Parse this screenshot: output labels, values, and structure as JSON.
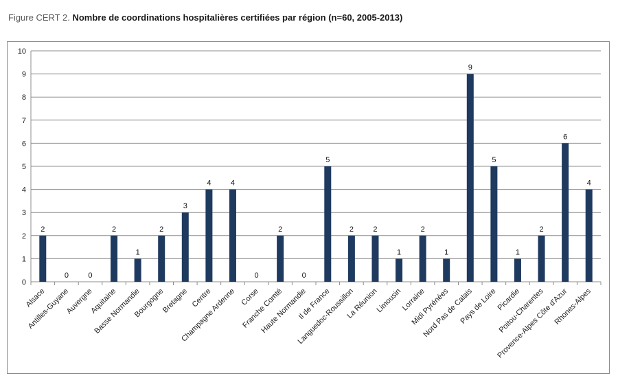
{
  "figure": {
    "label": "Figure CERT 2.",
    "title": "Nombre de coordinations hospitalières certifiées par région (n=60, 2005-2013)"
  },
  "chart_data": {
    "type": "bar",
    "categories": [
      "Alsace",
      "Antilles-Guyane",
      "Auvergne",
      "Aquitaine",
      "Basse Normandie",
      "Bourgogne",
      "Bretagne",
      "Centre",
      "Champagne Ardenne",
      "Corse",
      "Franche Comté",
      "Haute Normandie",
      "Il de France",
      "Languedoc-Roussillon",
      "La Réunion",
      "Limousin",
      "Lorraine",
      "Midi Pyrénées",
      "Nord Pas de Calais",
      "Pays de Loire",
      "Picardie",
      "Poitou-Charentes",
      "Provence-Alpes Côte d'Azur",
      "Rhones-Alpes"
    ],
    "values": [
      2,
      0,
      0,
      2,
      1,
      2,
      3,
      4,
      4,
      0,
      2,
      0,
      5,
      2,
      2,
      1,
      2,
      1,
      9,
      5,
      1,
      2,
      6,
      4
    ],
    "yticks": [
      "0",
      "1",
      "2",
      "3",
      "4",
      "5",
      "6",
      "7",
      "8",
      "9",
      "10"
    ],
    "ylim": [
      0,
      10
    ],
    "grid": true,
    "legend": "none",
    "data_labels": true,
    "bar_color": "#1f3a5f",
    "grid_color": "#8c8c8c"
  }
}
